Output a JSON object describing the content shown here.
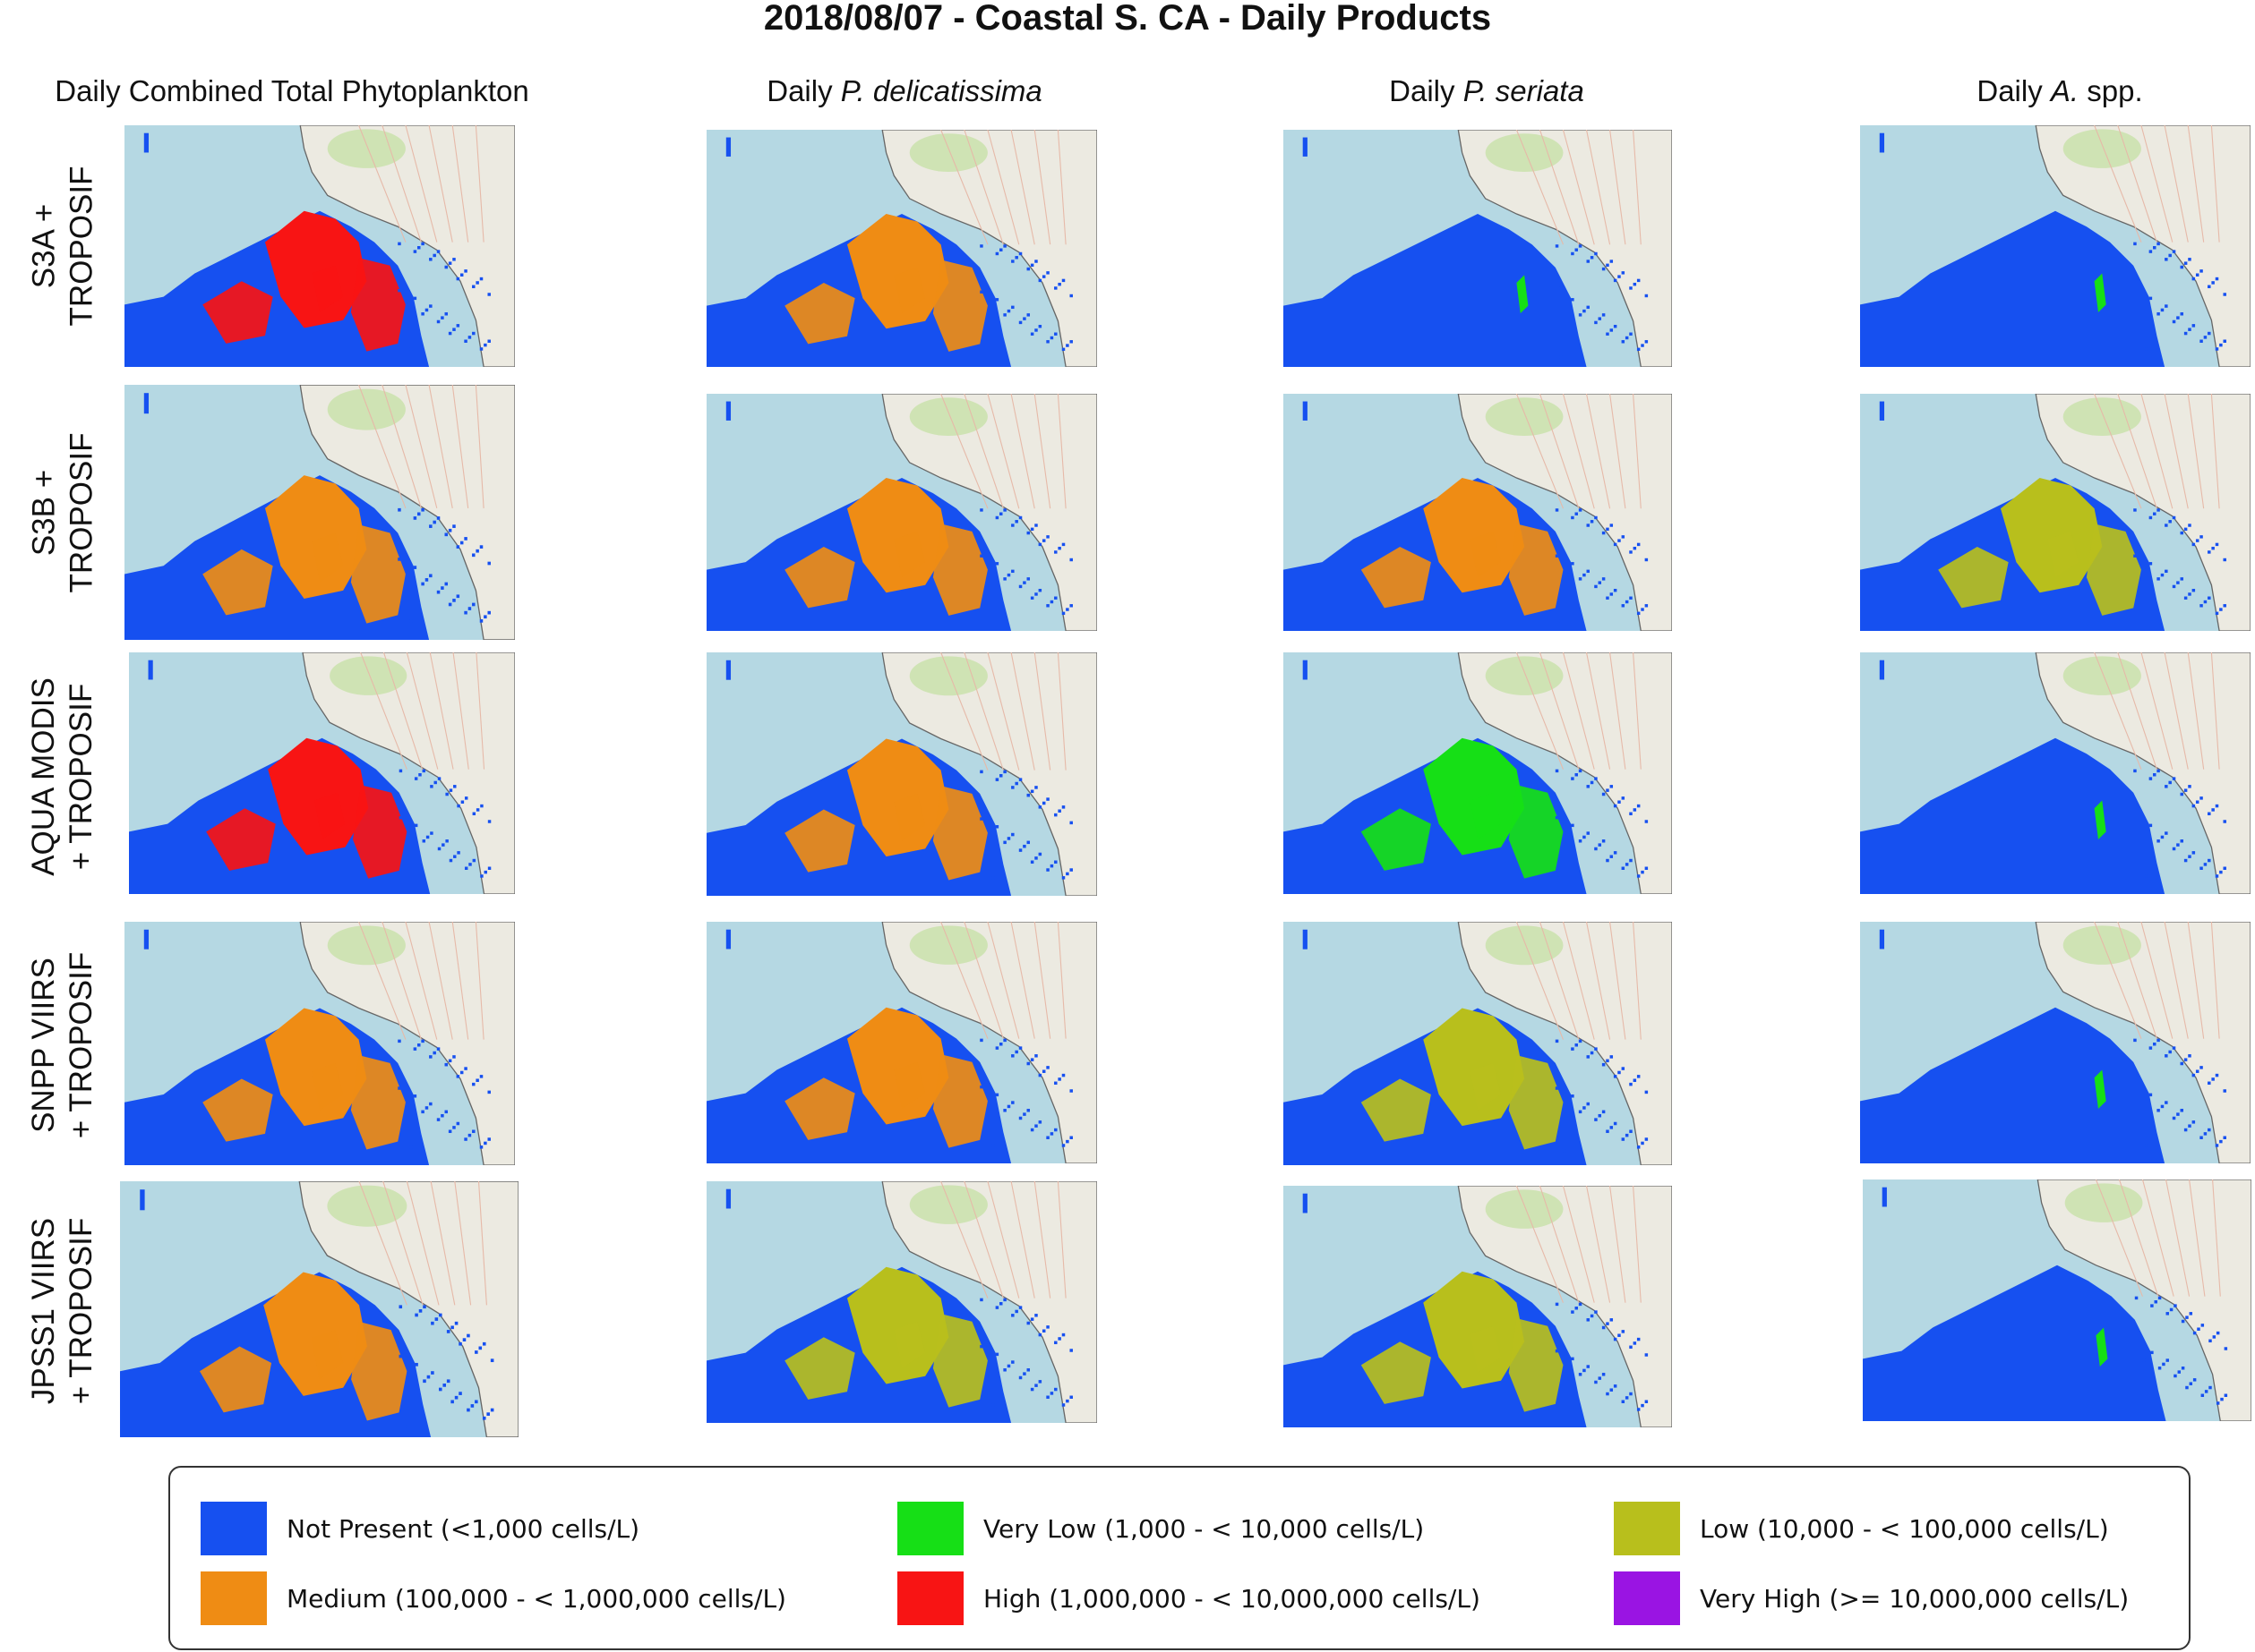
{
  "title": "2018/08/07 - Coastal S. CA - Daily Products",
  "columns": [
    {
      "prefix": "Daily Combined Total Phytoplankton",
      "italic": "",
      "suffix": ""
    },
    {
      "prefix": "Daily ",
      "italic": "P. delicatissima",
      "suffix": ""
    },
    {
      "prefix": "Daily ",
      "italic": "P. seriata",
      "suffix": ""
    },
    {
      "prefix": "Daily ",
      "italic": "A.",
      "suffix": " spp."
    }
  ],
  "rows": [
    {
      "label": "S3A +\nTROPOSIF"
    },
    {
      "label": "S3B +\nTROPOSIF"
    },
    {
      "label": "AQUA MODIS\n+ TROPOSIF"
    },
    {
      "label": "SNPP VIIRS\n+ TROPOSIF"
    },
    {
      "label": "JPSS1 VIIRS\n+ TROPOSIF"
    }
  ],
  "classes": [
    {
      "label": "Not Present (<1,000 cells/L)",
      "color": "#1650f0"
    },
    {
      "label": "Very Low (1,000 - < 10,000 cells/L)",
      "color": "#16df16"
    },
    {
      "label": "Low (10,000 - < 100,000 cells/L)",
      "color": "#b8bf1c"
    },
    {
      "label": "Medium (100,000 - < 1,000,000 cells/L)",
      "color": "#ef8c14"
    },
    {
      "label": "High (1,000,000 - < 10,000,000 cells/L)",
      "color": "#f81414"
    },
    {
      "label": "Very High (>= 10,000,000 cells/L)",
      "color": "#9a14e3"
    }
  ],
  "map_colors": {
    "ocean": "#b5d8e3",
    "land": "#eceae1",
    "vegetation": "#cfe3b4",
    "roads": "#e6b9a8",
    "coast": "#666666"
  },
  "panel_dominant_class": [
    [
      "High",
      "Medium",
      "Not Present",
      "Not Present"
    ],
    [
      "Medium",
      "Medium",
      "Medium",
      "Low"
    ],
    [
      "High",
      "Medium",
      "Very Low",
      "Not Present"
    ],
    [
      "Medium",
      "Medium",
      "Low",
      "Not Present"
    ],
    [
      "Medium",
      "Low",
      "Low",
      "Not Present"
    ]
  ]
}
